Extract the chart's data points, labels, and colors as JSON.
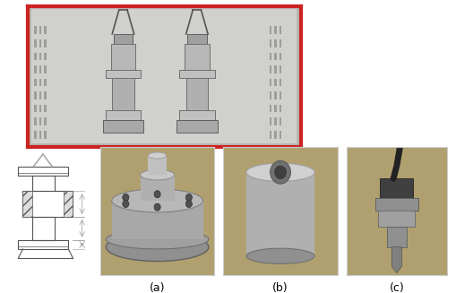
{
  "background_color": "#ffffff",
  "fig_width": 5.09,
  "fig_height": 3.27,
  "dpi": 100,
  "label_a": "(a)",
  "label_b": "(b)",
  "label_c": "(c)",
  "label_fontsize": 9,
  "border_color_top": "#cc2222",
  "border_color_panels": "#cccccc",
  "oven_wall_color": "#b8b8b4",
  "oven_inner_color": "#d0d0cc",
  "fixture_colors": [
    "#a0a0a0",
    "#b8b8b8",
    "#c0c0c0",
    "#b0b0b0",
    "#a8a8a8"
  ],
  "panel_bg": "#b0a070",
  "schematic_color": "#555555"
}
